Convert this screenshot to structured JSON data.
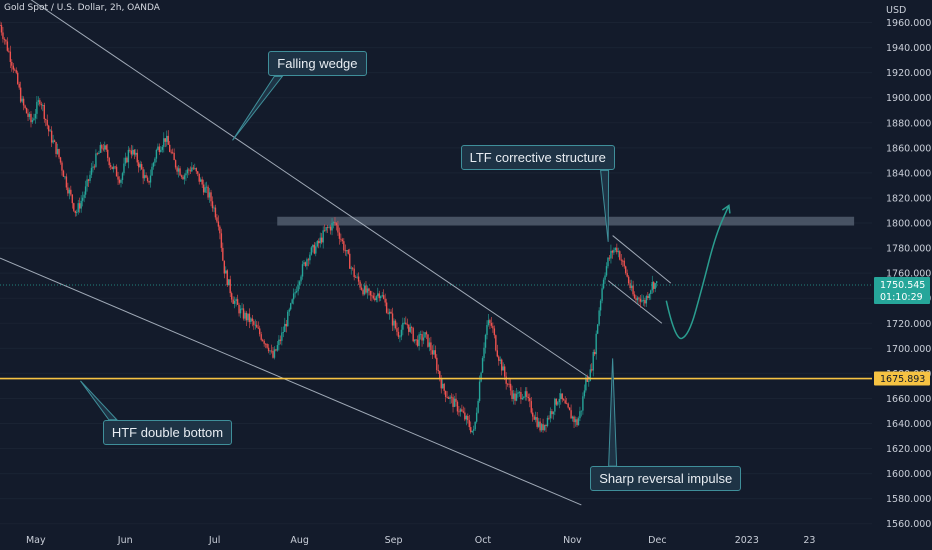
{
  "title": "Gold Spot / U.S. Dollar, 2h, OANDA",
  "currency": "USD",
  "colors": {
    "background": "#131b2b",
    "candle_up": "#26a69a",
    "candle_down": "#ef5350",
    "support_line": "#f6c343",
    "trend_line": "#b8c2cf",
    "callout_border": "#3f8f9a",
    "projection": "#2a9d8f"
  },
  "chart_data": {
    "type": "candlestick",
    "ylim": [
      1555,
      1978
    ],
    "xlim": [
      0,
      195
    ],
    "y_ticks": [
      1560,
      1580,
      1600,
      1620,
      1640,
      1660,
      1680,
      1700,
      1720,
      1740,
      1760,
      1780,
      1800,
      1820,
      1840,
      1860,
      1880,
      1900,
      1920,
      1940,
      1960
    ],
    "y_tick_labels": [
      "1560.000",
      "1580.000",
      "1600.000",
      "1620.000",
      "1640.000",
      "1660.000",
      "1680.000",
      "1700.000",
      "1720.000",
      "1740.000",
      "1760.000",
      "1780.000",
      "1800.000",
      "1820.000",
      "1840.000",
      "1860.000",
      "1880.000",
      "1900.000",
      "1920.000",
      "1940.000",
      "1960.000"
    ],
    "x_tick_labels": [
      {
        "x": 8,
        "label": "May"
      },
      {
        "x": 28,
        "label": "Jun"
      },
      {
        "x": 48,
        "label": "Jul"
      },
      {
        "x": 67,
        "label": "Aug"
      },
      {
        "x": 88,
        "label": "Sep"
      },
      {
        "x": 108,
        "label": "Oct"
      },
      {
        "x": 128,
        "label": "Nov"
      },
      {
        "x": 147,
        "label": "Dec"
      },
      {
        "x": 167,
        "label": "2023"
      },
      {
        "x": 181,
        "label": "23"
      }
    ],
    "last_price": {
      "value": 1750.545,
      "label": "1750.545",
      "countdown": "01:10:29"
    },
    "support_level": {
      "value": 1675.893,
      "label": "1675.893"
    },
    "resistance_zone": {
      "x1": 62,
      "x2": 191,
      "y1": 1798,
      "y2": 1805
    },
    "close_path": [
      [
        0,
        1958
      ],
      [
        3,
        1925
      ],
      [
        5,
        1895
      ],
      [
        7,
        1880
      ],
      [
        9,
        1900
      ],
      [
        11,
        1872
      ],
      [
        13,
        1855
      ],
      [
        15,
        1830
      ],
      [
        17,
        1808
      ],
      [
        19,
        1825
      ],
      [
        21,
        1848
      ],
      [
        23,
        1862
      ],
      [
        25,
        1845
      ],
      [
        27,
        1835
      ],
      [
        29,
        1860
      ],
      [
        31,
        1848
      ],
      [
        33,
        1830
      ],
      [
        35,
        1858
      ],
      [
        37,
        1868
      ],
      [
        39,
        1848
      ],
      [
        41,
        1838
      ],
      [
        43,
        1845
      ],
      [
        45,
        1832
      ],
      [
        47,
        1820
      ],
      [
        49,
        1800
      ],
      [
        50,
        1765
      ],
      [
        52,
        1740
      ],
      [
        54,
        1728
      ],
      [
        56,
        1722
      ],
      [
        58,
        1712
      ],
      [
        60,
        1702
      ],
      [
        61,
        1692
      ],
      [
        63,
        1710
      ],
      [
        65,
        1732
      ],
      [
        67,
        1758
      ],
      [
        69,
        1775
      ],
      [
        71,
        1782
      ],
      [
        73,
        1795
      ],
      [
        75,
        1800
      ],
      [
        77,
        1780
      ],
      [
        79,
        1760
      ],
      [
        81,
        1748
      ],
      [
        83,
        1740
      ],
      [
        85,
        1745
      ],
      [
        87,
        1728
      ],
      [
        89,
        1712
      ],
      [
        91,
        1720
      ],
      [
        93,
        1705
      ],
      [
        95,
        1710
      ],
      [
        97,
        1695
      ],
      [
        99,
        1668
      ],
      [
        101,
        1658
      ],
      [
        103,
        1650
      ],
      [
        105,
        1638
      ],
      [
        106,
        1632
      ],
      [
        108,
        1698
      ],
      [
        109,
        1720
      ],
      [
        110,
        1718
      ],
      [
        111,
        1700
      ],
      [
        113,
        1676
      ],
      [
        115,
        1660
      ],
      [
        117,
        1665
      ],
      [
        119,
        1650
      ],
      [
        121,
        1635
      ],
      [
        123,
        1648
      ],
      [
        125,
        1662
      ],
      [
        127,
        1650
      ],
      [
        129,
        1640
      ],
      [
        130,
        1652
      ],
      [
        131,
        1675
      ],
      [
        132,
        1680
      ],
      [
        133,
        1700
      ],
      [
        134,
        1732
      ],
      [
        135,
        1758
      ],
      [
        136,
        1770
      ],
      [
        137,
        1778
      ],
      [
        138,
        1780
      ],
      [
        139,
        1770
      ],
      [
        140,
        1760
      ],
      [
        141,
        1748
      ],
      [
        142,
        1738
      ],
      [
        143,
        1742
      ],
      [
        144,
        1736
      ],
      [
        145,
        1745
      ],
      [
        146,
        1752
      ],
      [
        147,
        1750.545
      ]
    ],
    "trend_lines": [
      {
        "name": "falling-wedge-upper-line",
        "x1": 0,
        "y1": 1995,
        "x2": 132,
        "y2": 1676
      },
      {
        "name": "falling-wedge-lower-line",
        "x1": 0,
        "y1": 1772,
        "x2": 130,
        "y2": 1575
      },
      {
        "name": "ltf-channel-upper-line",
        "x1": 137,
        "y1": 1790,
        "x2": 150,
        "y2": 1752
      },
      {
        "name": "ltf-channel-lower-line",
        "x1": 136,
        "y1": 1754,
        "x2": 148,
        "y2": 1720
      }
    ],
    "projection_path": [
      [
        149,
        1738
      ],
      [
        151,
        1706
      ],
      [
        154,
        1710
      ],
      [
        157,
        1748
      ],
      [
        160,
        1790
      ],
      [
        163,
        1814
      ]
    ],
    "annotations": [
      {
        "name": "falling-wedge-callout",
        "text": "Falling wedge",
        "box_x": 60,
        "box_y": 1937,
        "tail_x": 52,
        "tail_y": 1866
      },
      {
        "name": "ltf-structure-callout",
        "text": "LTF corrective structure",
        "box_x": 103,
        "box_y": 1862,
        "tail_x": 136,
        "tail_y": 1785
      },
      {
        "name": "htf-double-bottom-callout",
        "text": "HTF double bottom",
        "box_x": 23,
        "box_y": 1643,
        "tail_x": 18,
        "tail_y": 1674
      },
      {
        "name": "sharp-reversal-callout",
        "text": "Sharp reversal impulse",
        "box_x": 132,
        "box_y": 1606,
        "tail_x": 137,
        "tail_y": 1692
      }
    ]
  }
}
